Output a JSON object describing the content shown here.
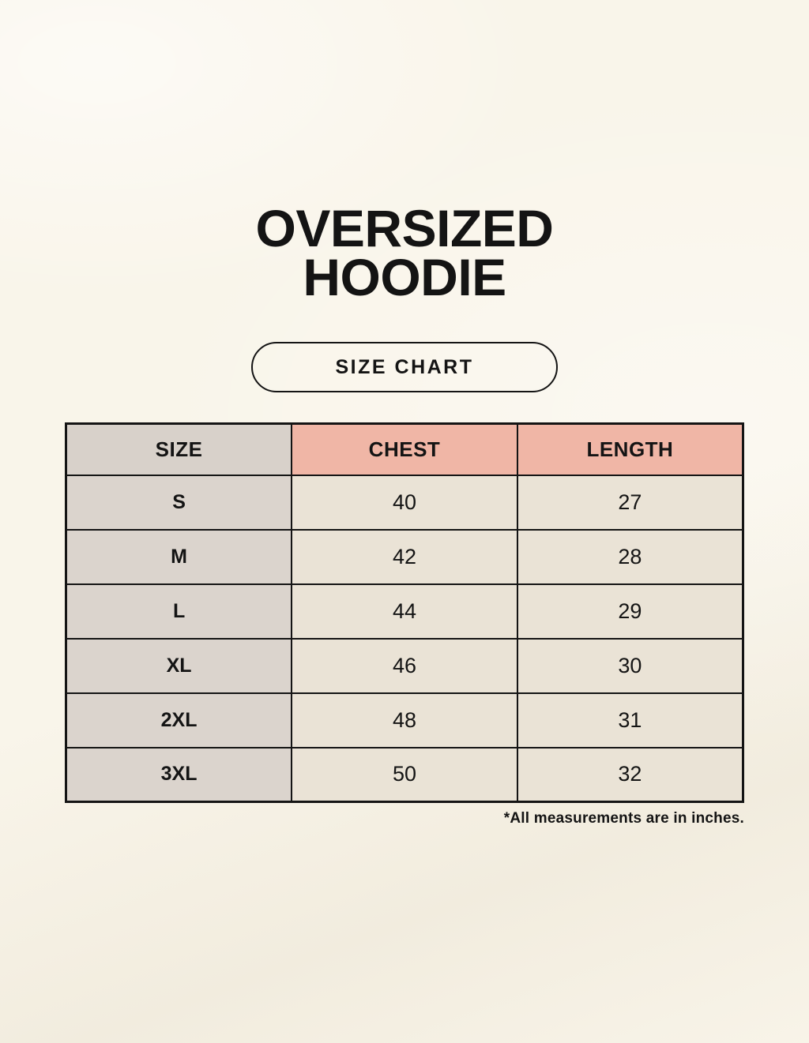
{
  "header": {
    "title_line1": "OVERSIZED",
    "title_line2": "HOODIE",
    "badge_label": "SIZE CHART"
  },
  "chart_data": {
    "type": "table",
    "title": "OVERSIZED HOODIE — SIZE CHART",
    "columns": [
      "SIZE",
      "CHEST",
      "LENGTH"
    ],
    "rows": [
      [
        "S",
        "40",
        "27"
      ],
      [
        "M",
        "42",
        "28"
      ],
      [
        "L",
        "44",
        "29"
      ],
      [
        "XL",
        "46",
        "30"
      ],
      [
        "2XL",
        "48",
        "31"
      ],
      [
        "3XL",
        "50",
        "32"
      ]
    ],
    "units_note": "*All measurements are in inches."
  },
  "colors": {
    "page_bg": "#f9f5ea",
    "border": "#141414",
    "text": "#141414",
    "size_header_bg": "#d8d1ca",
    "measure_header_bg": "#f0b6a6",
    "size_cell_bg": "#dbd4cd",
    "data_cell_bg": "#eae3d6"
  }
}
